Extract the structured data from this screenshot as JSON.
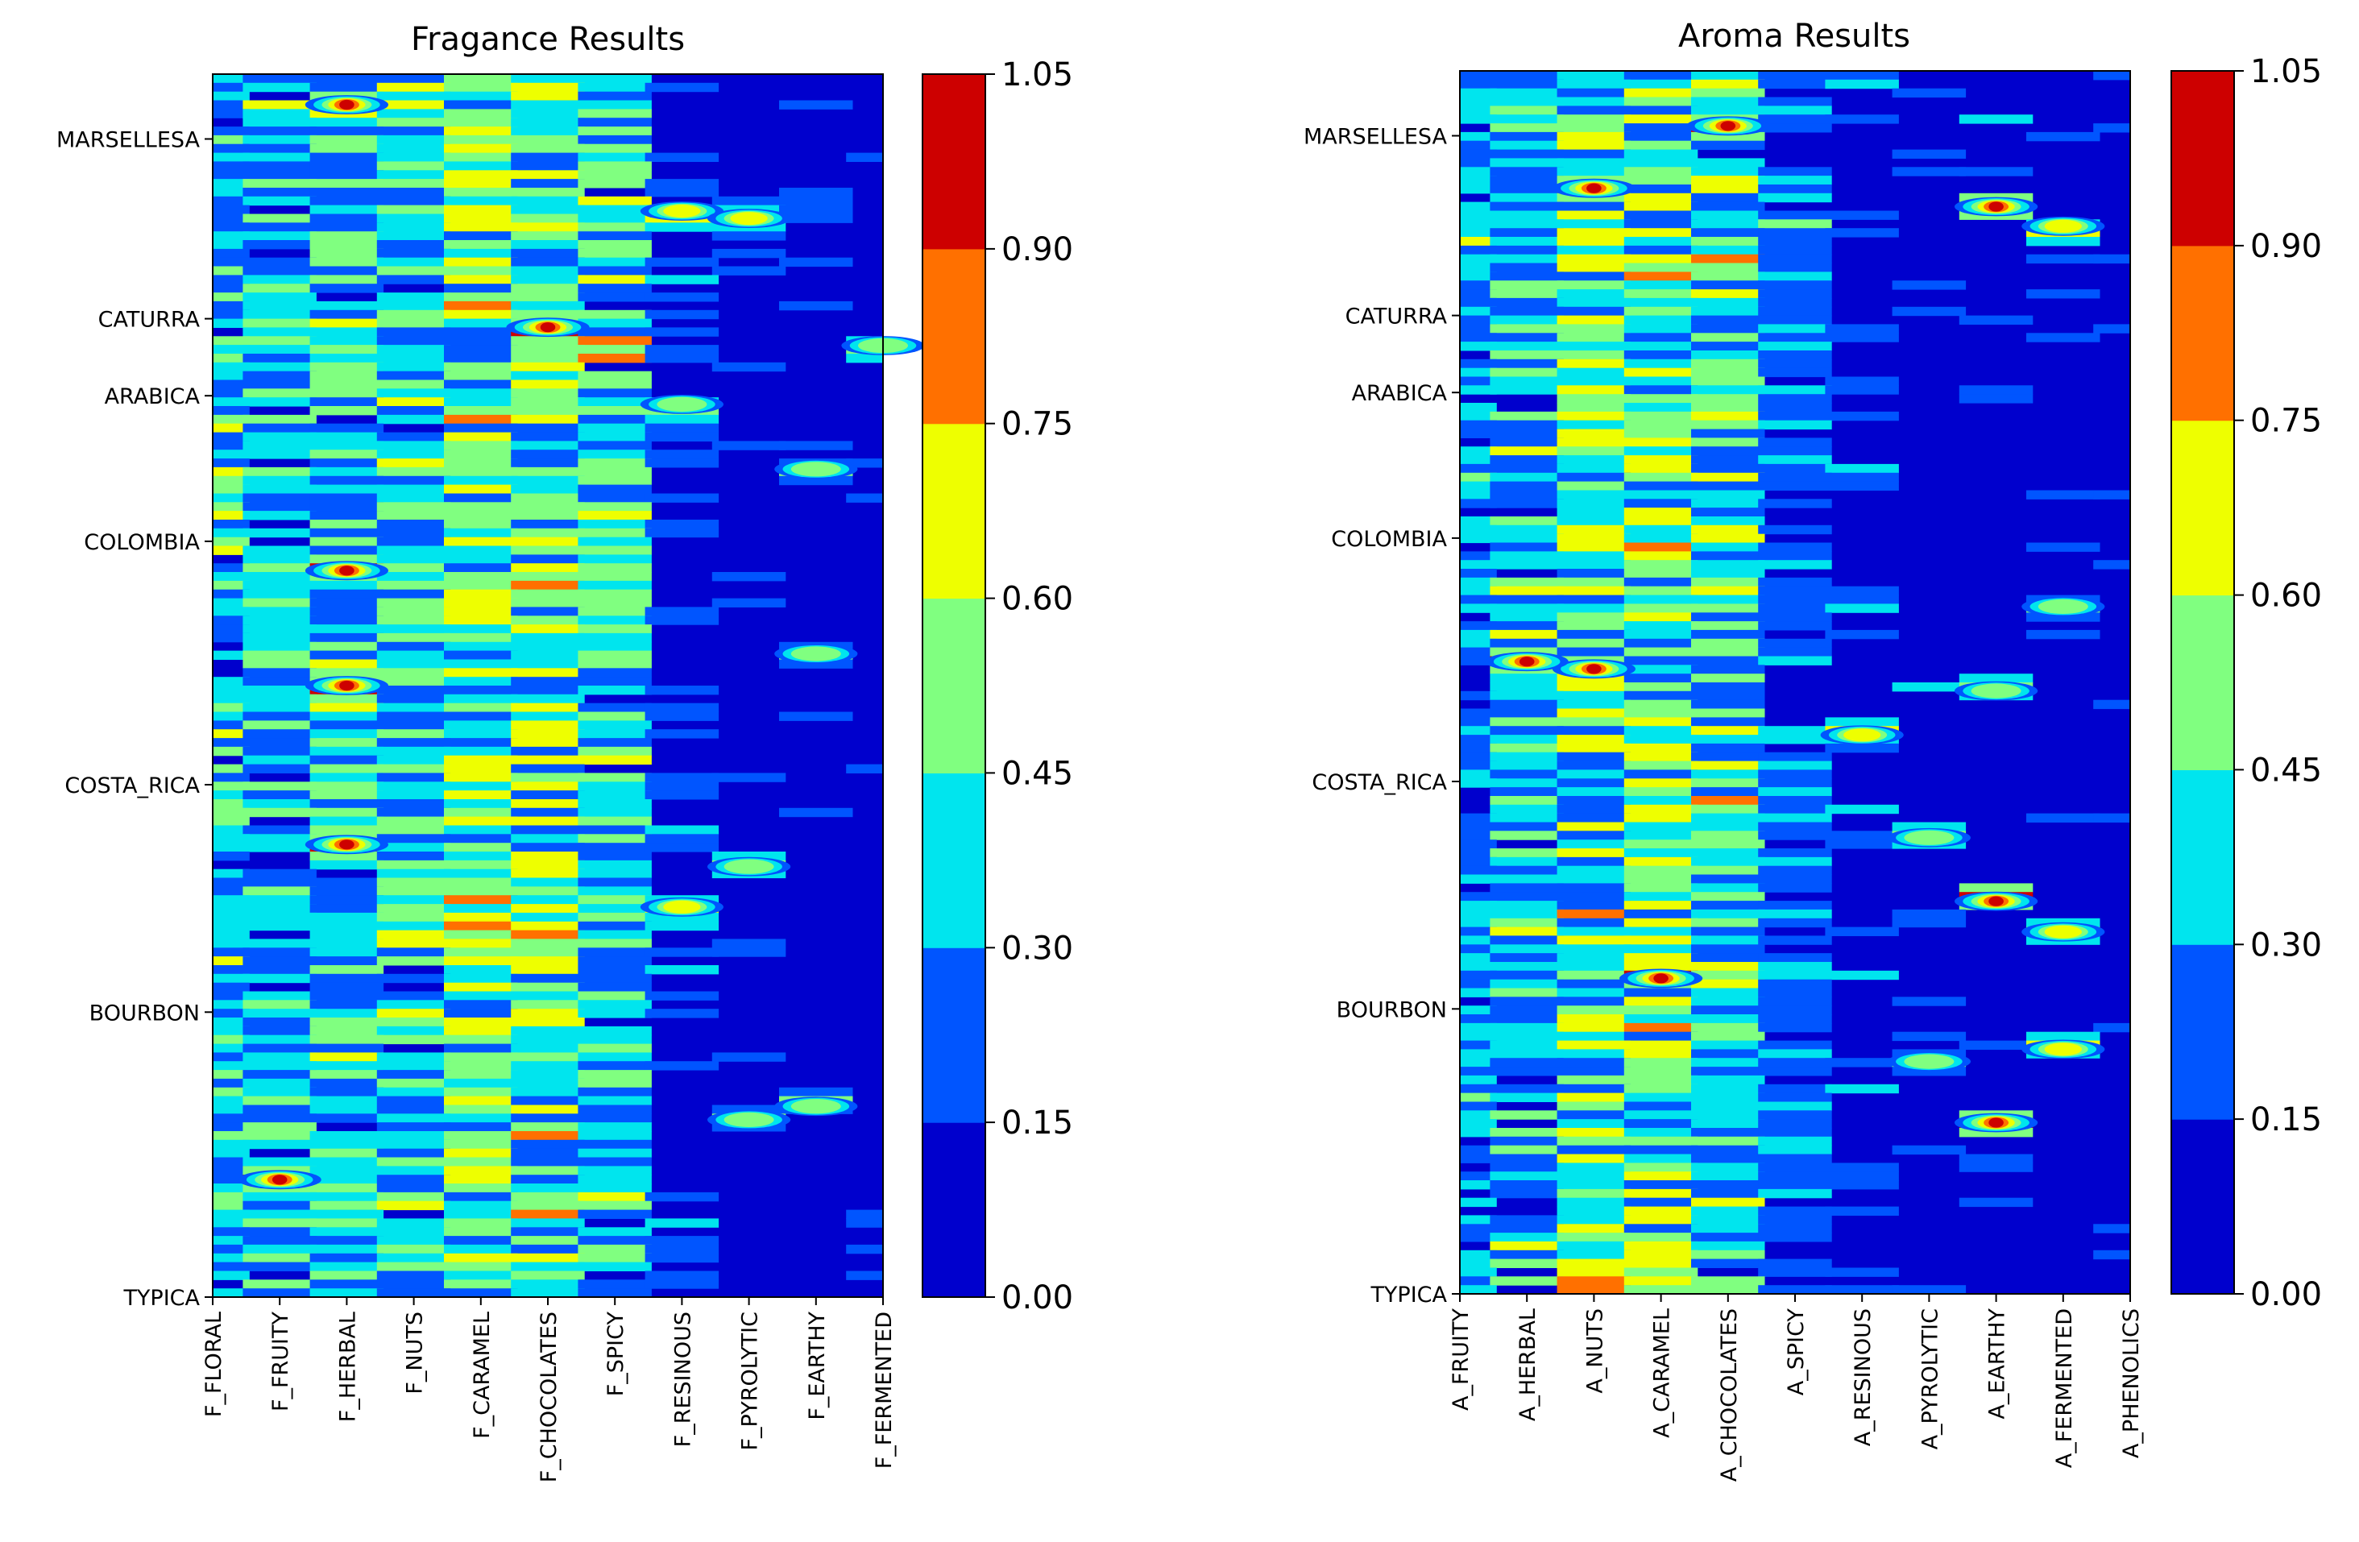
{
  "chart_data": [
    {
      "type": "heatmap",
      "subtype": "filled-contour",
      "title": "Fragance Results",
      "y_labels": [
        "MARSELLESA",
        "CATURRA",
        "ARABICA",
        "COLOMBIA",
        "COSTA_RICA",
        "BOURBON",
        "TYPICA"
      ],
      "y_tick_values": [
        0.947,
        0.8,
        0.737,
        0.618,
        0.419,
        0.233,
        0.0
      ],
      "x_labels": [
        "F_FLORAL",
        "F_FRUITY",
        "F_HERBAL",
        "F_NUTS",
        "F_CARAMEL",
        "F_CHOCOLATES",
        "F_SPICY",
        "F_RESINOUS",
        "F_PYROLYTIC",
        "F_EARTHY",
        "F_FERMENTED"
      ],
      "intensity_profile": [
        0.32,
        0.3,
        0.34,
        0.36,
        0.42,
        0.44,
        0.38,
        0.12,
        0.06,
        0.03,
        0.03
      ],
      "hotspots": [
        {
          "x": 2,
          "y": 0.975,
          "value": 0.9
        },
        {
          "x": 2,
          "y": 0.594,
          "value": 1.0
        },
        {
          "x": 2,
          "y": 0.5,
          "value": 1.0
        },
        {
          "x": 2,
          "y": 0.37,
          "value": 0.95
        },
        {
          "x": 5,
          "y": 0.793,
          "value": 0.9
        },
        {
          "x": 1,
          "y": 0.096,
          "value": 0.9
        },
        {
          "x": 7,
          "y": 0.888,
          "value": 0.6
        },
        {
          "x": 8,
          "y": 0.882,
          "value": 0.6
        },
        {
          "x": 7,
          "y": 0.73,
          "value": 0.55
        },
        {
          "x": 8,
          "y": 0.352,
          "value": 0.55
        },
        {
          "x": 9,
          "y": 0.526,
          "value": 0.5
        },
        {
          "x": 9,
          "y": 0.677,
          "value": 0.5
        },
        {
          "x": 7,
          "y": 0.319,
          "value": 0.6
        },
        {
          "x": 10,
          "y": 0.778,
          "value": 0.55
        },
        {
          "x": 8,
          "y": 0.145,
          "value": 0.5
        },
        {
          "x": 9,
          "y": 0.156,
          "value": 0.5
        }
      ],
      "colorbar": {
        "levels": [
          0.0,
          0.15,
          0.3,
          0.45,
          0.6,
          0.75,
          0.9,
          1.05
        ],
        "tick_labels": [
          "0.00",
          "0.15",
          "0.30",
          "0.45",
          "0.60",
          "0.75",
          "0.90",
          "1.05"
        ],
        "colors": [
          "#0000cd",
          "#0055ff",
          "#00e5ee",
          "#80ff80",
          "#eeff00",
          "#ff7000",
          "#cd0000"
        ]
      }
    },
    {
      "type": "heatmap",
      "subtype": "filled-contour",
      "title": "Aroma Results",
      "y_labels": [
        "MARSELLESA",
        "CATURRA",
        "ARABICA",
        "COLOMBIA",
        "COSTA_RICA",
        "BOURBON",
        "TYPICA"
      ],
      "y_tick_values": [
        0.947,
        0.8,
        0.737,
        0.618,
        0.419,
        0.233,
        0.0
      ],
      "x_labels": [
        "A_FRUITY",
        "A_HERBAL",
        "A_NUTS",
        "A_CARAMEL",
        "A_CHOCOLATES",
        "A_SPICY",
        "A_RESINOUS",
        "A_PYROLYTIC",
        "A_EARTHY",
        "A_FERMENTED",
        "A_PHENOLICS"
      ],
      "intensity_profile": [
        0.26,
        0.3,
        0.44,
        0.44,
        0.4,
        0.2,
        0.1,
        0.06,
        0.05,
        0.04,
        0.02
      ],
      "hotspots": [
        {
          "x": 2,
          "y": 0.904,
          "value": 0.95
        },
        {
          "x": 2,
          "y": 0.511,
          "value": 1.0
        },
        {
          "x": 1,
          "y": 0.517,
          "value": 0.9
        },
        {
          "x": 3,
          "y": 0.258,
          "value": 0.95
        },
        {
          "x": 4,
          "y": 0.955,
          "value": 0.9
        },
        {
          "x": 8,
          "y": 0.889,
          "value": 1.0
        },
        {
          "x": 8,
          "y": 0.321,
          "value": 1.0
        },
        {
          "x": 8,
          "y": 0.14,
          "value": 1.0
        },
        {
          "x": 9,
          "y": 0.873,
          "value": 0.7
        },
        {
          "x": 9,
          "y": 0.296,
          "value": 0.65
        },
        {
          "x": 9,
          "y": 0.2,
          "value": 0.6
        },
        {
          "x": 6,
          "y": 0.457,
          "value": 0.6
        },
        {
          "x": 7,
          "y": 0.373,
          "value": 0.55
        },
        {
          "x": 8,
          "y": 0.493,
          "value": 0.55
        },
        {
          "x": 9,
          "y": 0.562,
          "value": 0.5
        },
        {
          "x": 7,
          "y": 0.19,
          "value": 0.5
        }
      ],
      "colorbar": {
        "levels": [
          0.0,
          0.15,
          0.3,
          0.45,
          0.6,
          0.75,
          0.9,
          1.05
        ],
        "tick_labels": [
          "0.00",
          "0.15",
          "0.30",
          "0.45",
          "0.60",
          "0.75",
          "0.90",
          "1.05"
        ],
        "colors": [
          "#0000cd",
          "#0055ff",
          "#00e5ee",
          "#80ff80",
          "#eeff00",
          "#ff7000",
          "#cd0000"
        ]
      }
    }
  ]
}
